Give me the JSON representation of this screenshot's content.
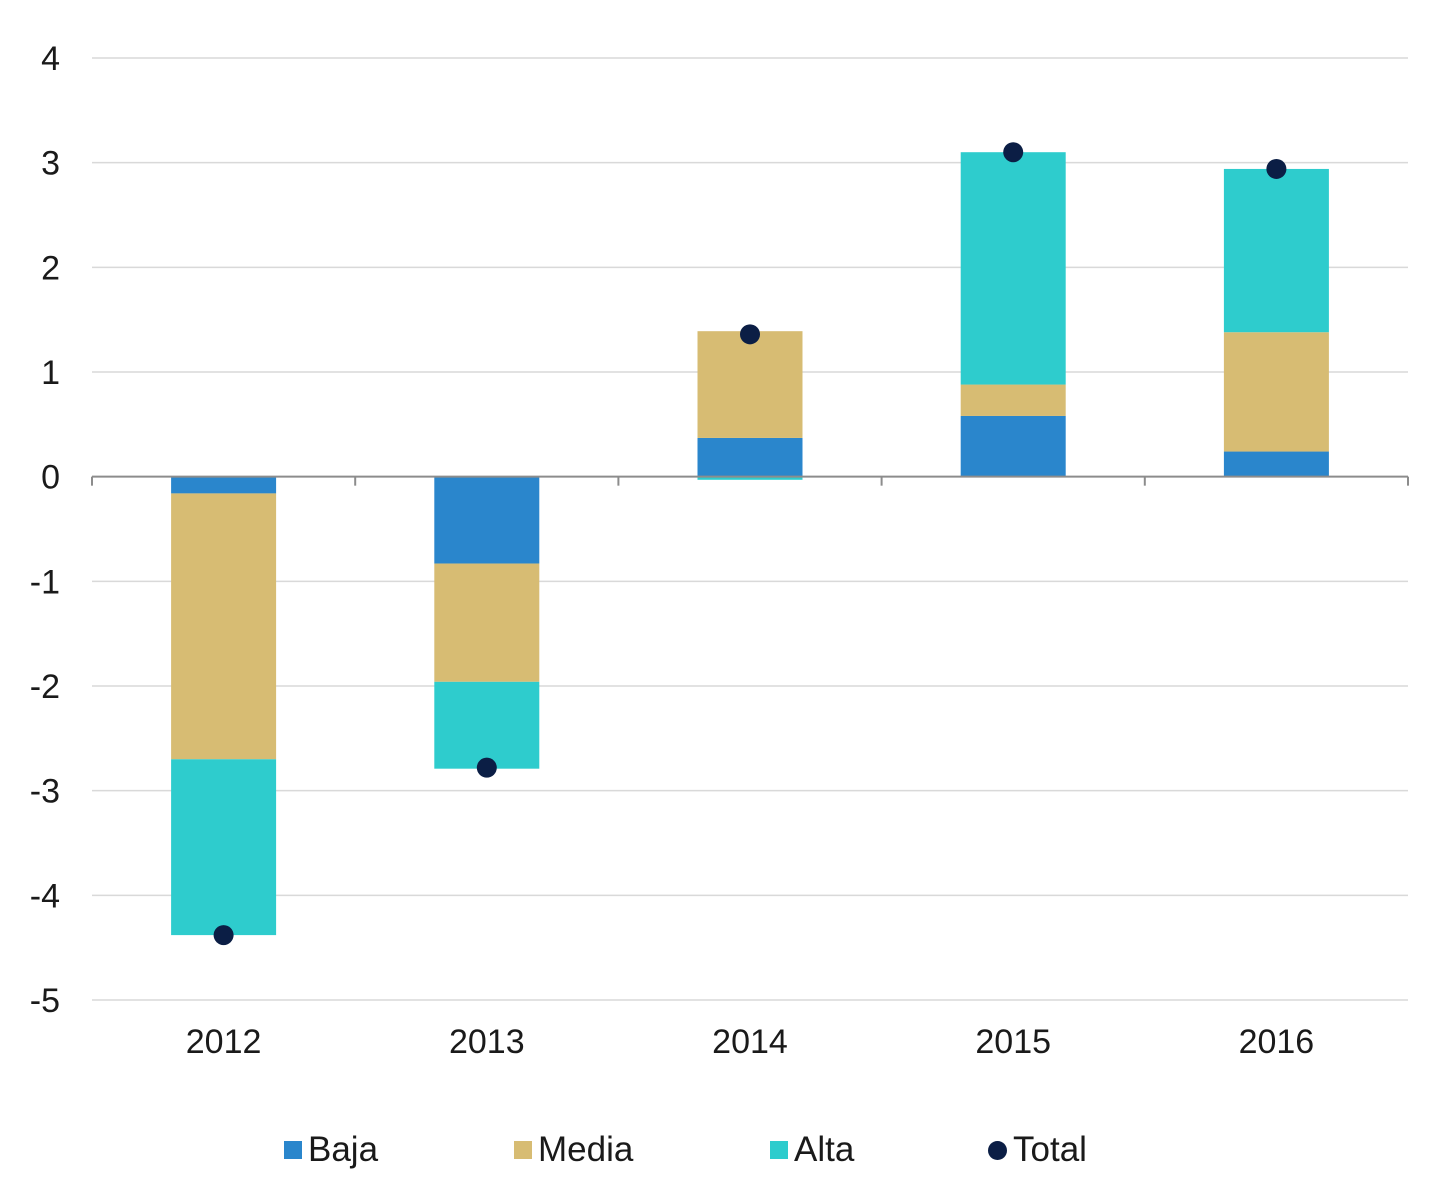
{
  "chart_data": {
    "type": "bar",
    "stacked": true,
    "categories": [
      "2012",
      "2013",
      "2014",
      "2015",
      "2016"
    ],
    "series": [
      {
        "name": "Baja",
        "kind": "bar",
        "color": "#2a86cc",
        "values": [
          -0.16,
          -0.83,
          0.37,
          0.58,
          0.24
        ]
      },
      {
        "name": "Media",
        "kind": "bar",
        "color": "#d7bc73",
        "values": [
          -2.54,
          -1.13,
          1.02,
          0.3,
          1.14
        ]
      },
      {
        "name": "Alta",
        "kind": "bar",
        "color": "#2ecccd",
        "values": [
          -1.68,
          -0.83,
          -0.03,
          2.22,
          1.56
        ]
      },
      {
        "name": "Total",
        "kind": "point",
        "color": "#0b1e45",
        "values": [
          -4.38,
          -2.78,
          1.36,
          3.1,
          2.94
        ]
      }
    ],
    "yticks": [
      "4",
      "3",
      "2",
      "1",
      "0",
      "-1",
      "-2",
      "-3",
      "-4",
      "-5"
    ],
    "ylim": [
      -5,
      4
    ],
    "grid": true,
    "legend_position": "bottom"
  }
}
